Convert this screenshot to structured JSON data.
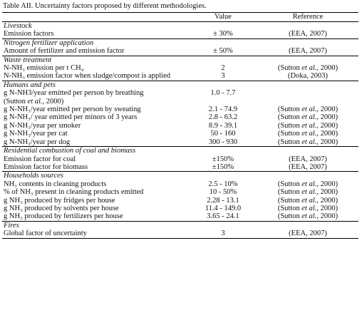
{
  "caption": "Table AII. Uncertainty factors proposed by different methodologies.",
  "headers": {
    "col1": "",
    "value": "Value",
    "reference": "Reference"
  },
  "sections": [
    {
      "title": "Livestock",
      "rows": [
        {
          "factor": "Emission factors",
          "value": "± 30%",
          "reference": "(EEA, 2007)"
        }
      ]
    },
    {
      "title": "Nitrogen fertilizer application",
      "rows": [
        {
          "factor": "Amount of fertilizer and emission factor",
          "value": "± 50%",
          "reference": "(EEA, 2007)"
        }
      ]
    },
    {
      "title": "Waste treatment",
      "rows": [
        {
          "factor": "N-NH₃ emission per t CH₄",
          "value": "2",
          "reference": "(Sutton et al., 2000)"
        },
        {
          "factor": "N-NH₃ emission factor when sludge/compost is applied",
          "value": "3",
          "reference": "(Doka, 2003)"
        }
      ]
    },
    {
      "title": "Humans and pets",
      "rows": [
        {
          "factor": "g N-NH3/year emitted per person by breathing",
          "value": "1.0 - 7.7",
          "reference": ""
        },
        {
          "factor": "(Sutton et al., 2000)",
          "value": "",
          "reference": ""
        },
        {
          "factor": "g N-NH₃/year emitted per person by sweating",
          "value": "2.1 - 74.9",
          "reference": "(Sutton et al., 2000)"
        },
        {
          "factor": "g N-NH₃/ year emitted per minors of 3 years",
          "value": "2.8 - 63.2",
          "reference": "(Sutton et al., 2000)"
        },
        {
          "factor": "g N-NH₃/year per smoker",
          "value": "8.9 - 39.1",
          "reference": "(Sutton et al., 2000)"
        },
        {
          "factor": "g N-NH₃/year per cat",
          "value": "50 - 160",
          "reference": "(Sutton et al., 2000)"
        },
        {
          "factor": "g N-NH₃/year per dog",
          "value": "300 - 930",
          "reference": "(Sutton et al., 2000)"
        }
      ]
    },
    {
      "title": "Residential combustion of coal and biomass",
      "rows": [
        {
          "factor": "Emission factor for coal",
          "value": "±150%",
          "reference": "(EEA, 2007)"
        },
        {
          "factor": "Emission factor for biomass",
          "value": "±150%",
          "reference": "(EEA, 2007)"
        }
      ]
    },
    {
      "title": "Households sources",
      "rows": [
        {
          "factor": "NH₃ contents in cleaning products",
          "value": "2.5 - 10%",
          "reference": "(Sutton et al., 2000)"
        },
        {
          "factor": "% of NH₃ present in cleaning products emitted",
          "value": "10 - 50%",
          "reference": "(Sutton et al., 2000)"
        },
        {
          "factor": "g NH₃ produced by fridges per house",
          "value": "2.28 - 13.1",
          "reference": "(Sutton et al., 2000)"
        },
        {
          "factor": "g NH₃ produced by solvents per house",
          "value": "11.4 - 149.0",
          "reference": "(Sutton et al., 2000)"
        },
        {
          "factor": "g NH₃ produced by fertilizers per house",
          "value": "3.65 - 24.1",
          "reference": "(Sutton et al., 2000)"
        }
      ]
    },
    {
      "title": "Fires",
      "rows": [
        {
          "factor": "Global factor of uncertainty",
          "value": "3",
          "reference": "(EEA, 2007)"
        }
      ]
    }
  ]
}
